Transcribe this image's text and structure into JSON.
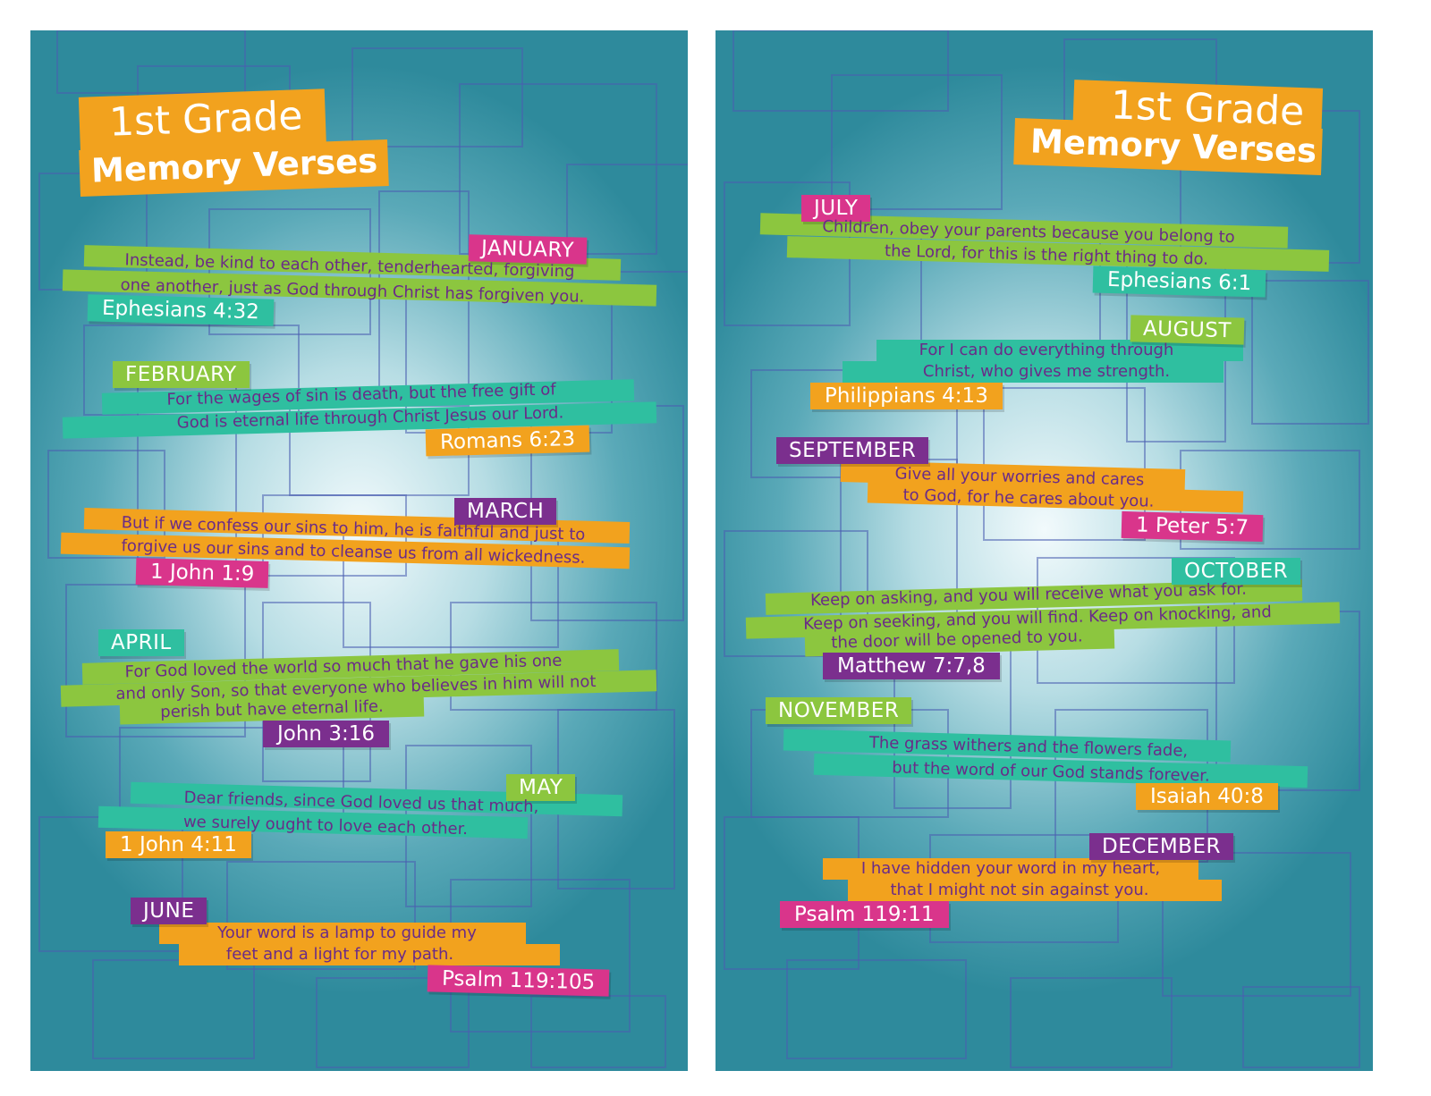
{
  "colors": {
    "green": "#8cc63f",
    "teal": "#2fbfa0",
    "orange": "#f2a21e",
    "magenta": "#d9358b",
    "purple": "#7b2f8e",
    "verse_text": "#6a2b88"
  },
  "left_card": {
    "title_line1": "1st Grade",
    "title_line2": "Memory Verses",
    "verses": [
      {
        "month": "JANUARY",
        "line1": "Instead, be kind to each other, tenderhearted, forgiving",
        "line2": "one another, just as God through Christ has forgiven you.",
        "line3": "",
        "reference": "Ephesians 4:32"
      },
      {
        "month": "FEBRUARY",
        "line1": "For the wages of sin is death, but the free gift of",
        "line2": "God is eternal life through Christ Jesus our Lord.",
        "line3": "",
        "reference": "Romans 6:23"
      },
      {
        "month": "MARCH",
        "line1": "But if we confess our sins to him, he is faithful and just to",
        "line2": "forgive us our sins and to cleanse us from all wickedness.",
        "line3": "",
        "reference": "1 John 1:9"
      },
      {
        "month": "APRIL",
        "line1": "For God loved the world so much that he gave his one",
        "line2": "and only Son, so that everyone who believes in him will not",
        "line3": "perish but have eternal life.",
        "reference": "John 3:16"
      },
      {
        "month": "MAY",
        "line1": "Dear friends, since God loved us that much,",
        "line2": "we surely ought to love each other.",
        "line3": "",
        "reference": "1 John 4:11"
      },
      {
        "month": "JUNE",
        "line1": "Your word is a lamp to guide my",
        "line2": "feet and a light for my path.",
        "line3": "",
        "reference": "Psalm 119:105"
      }
    ]
  },
  "right_card": {
    "title_line1": "1st Grade",
    "title_line2": "Memory Verses",
    "verses": [
      {
        "month": "JULY",
        "line1": "Children, obey your parents because you belong to",
        "line2": "the Lord, for this is the right thing to do.",
        "line3": "",
        "reference": "Ephesians 6:1"
      },
      {
        "month": "AUGUST",
        "line1": "For I can do everything through",
        "line2": "Christ, who gives me strength.",
        "line3": "",
        "reference": "Philippians 4:13"
      },
      {
        "month": "SEPTEMBER",
        "line1": "Give all your worries and cares",
        "line2": "to God, for he cares about you.",
        "line3": "",
        "reference": "1 Peter 5:7"
      },
      {
        "month": "OCTOBER",
        "line1": "Keep on asking, and you will receive what you ask for.",
        "line2": "Keep on seeking, and you will find. Keep on knocking, and",
        "line3": "the door will be opened to you.",
        "reference": "Matthew 7:7,8"
      },
      {
        "month": "NOVEMBER",
        "line1": "The grass withers and the flowers fade,",
        "line2": "but the word of our God stands forever.",
        "line3": "",
        "reference": "Isaiah 40:8"
      },
      {
        "month": "DECEMBER",
        "line1": "I have hidden your word in my heart,",
        "line2": "that I might not sin against you.",
        "line3": "",
        "reference": "Psalm 119:11"
      }
    ]
  }
}
